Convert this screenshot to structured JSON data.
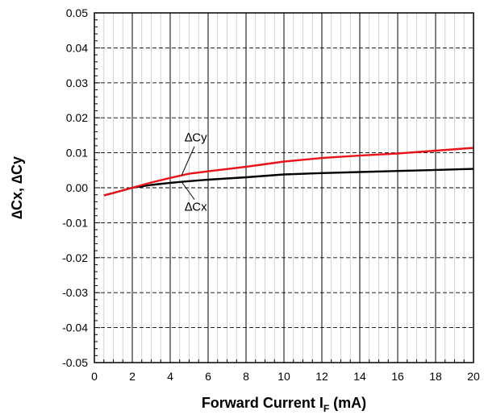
{
  "chart_data": {
    "type": "line",
    "xlabel": {
      "main": "Forward Current I",
      "sub": "F",
      "suffix": " (mA)"
    },
    "ylabel": "∆Cx, ∆Cy",
    "xlim": [
      0,
      20
    ],
    "ylim": [
      -0.05,
      0.05
    ],
    "x_major_ticks": [
      0,
      2,
      4,
      6,
      8,
      10,
      12,
      14,
      16,
      18,
      20
    ],
    "x_tick_labels": [
      "0",
      "2",
      "4",
      "6",
      "8",
      "10",
      "12",
      "14",
      "16",
      "18",
      "20"
    ],
    "y_major_ticks": [
      0.05,
      0.04,
      0.03,
      0.02,
      0.01,
      0.0,
      -0.01,
      -0.02,
      -0.03,
      -0.04,
      -0.05
    ],
    "y_tick_labels": [
      "0.05",
      "0.04",
      "0.03",
      "0.02",
      "0.01",
      "0.00",
      "-0.01",
      "-0.02",
      "-0.03",
      "-0.04",
      "-0.05"
    ],
    "x_minor_step": 0.5,
    "y_minor_step": 0.002,
    "grid": true,
    "series": [
      {
        "name": "∆Cy",
        "color": "#e8141b",
        "x": [
          0.5,
          1,
          2,
          3,
          4,
          5,
          6,
          8,
          10,
          12,
          14,
          16,
          18,
          20
        ],
        "y": [
          -0.0022,
          -0.0015,
          0.0,
          0.0015,
          0.0028,
          0.004,
          0.0047,
          0.006,
          0.0075,
          0.0085,
          0.0092,
          0.0098,
          0.0106,
          0.0114
        ]
      },
      {
        "name": "∆Cx",
        "color": "#000000",
        "x": [
          0.5,
          1,
          2,
          3,
          4,
          5,
          6,
          8,
          10,
          12,
          14,
          16,
          18,
          20
        ],
        "y": [
          -0.0022,
          -0.0015,
          0.0,
          0.0008,
          0.0014,
          0.0019,
          0.0023,
          0.003,
          0.0038,
          0.0042,
          0.0045,
          0.0048,
          0.0051,
          0.0054
        ]
      }
    ],
    "annotations": [
      {
        "text": "∆Cy",
        "series": "∆Cy",
        "x": 4.6
      },
      {
        "text": "∆Cx",
        "series": "∆Cx",
        "x": 4.6
      }
    ]
  }
}
